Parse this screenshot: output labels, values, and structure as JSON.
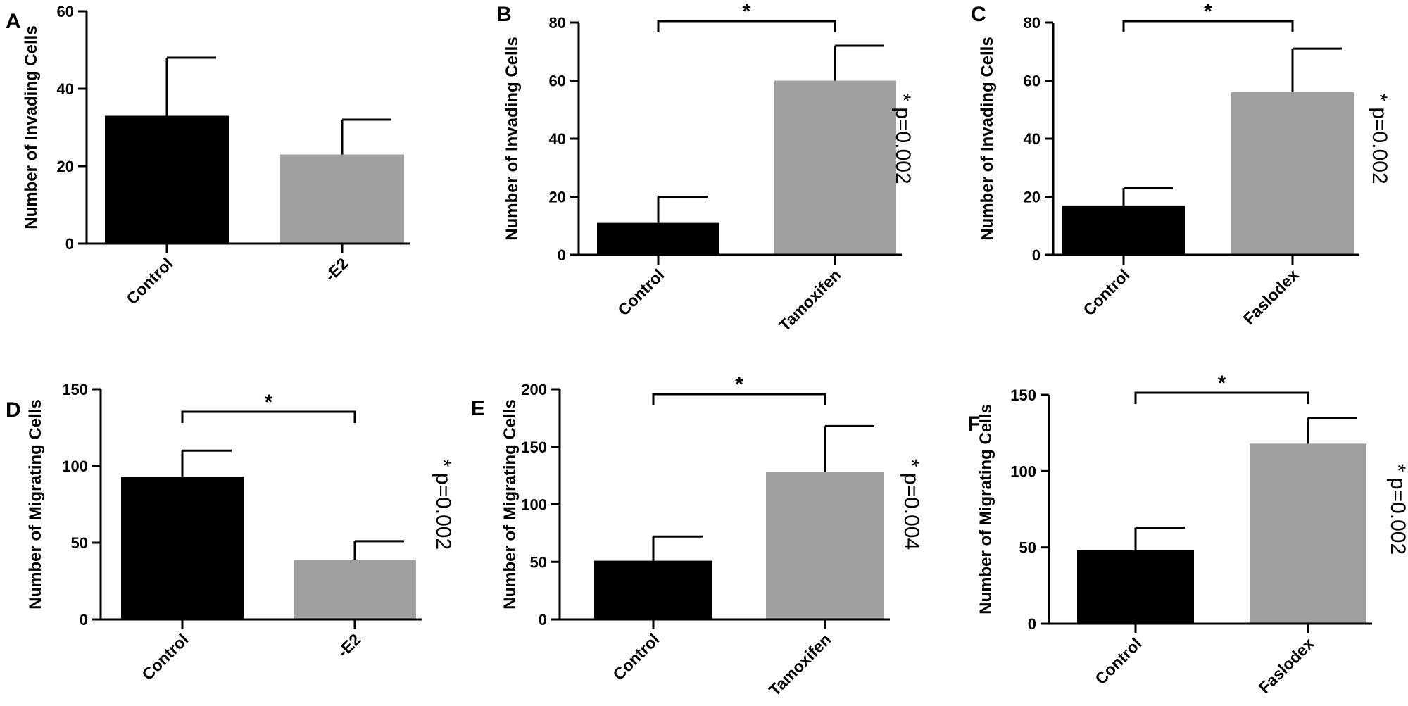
{
  "colors": {
    "control": "#000000",
    "treatment": "#a0a0a2",
    "axis": "#000000"
  },
  "chart_data": [
    {
      "panel": "A",
      "type": "bar",
      "categories": [
        "Control",
        "-E2"
      ],
      "values": [
        33,
        23
      ],
      "errors": [
        15,
        9
      ],
      "ylabel": "Number of Invading Cells",
      "ylim": [
        0,
        60
      ],
      "yticks": [
        0,
        20,
        40,
        60
      ],
      "bracket": null,
      "pvalue": null
    },
    {
      "panel": "B",
      "type": "bar",
      "categories": [
        "Control",
        "Tamoxifen"
      ],
      "values": [
        11,
        60
      ],
      "errors": [
        9,
        12
      ],
      "ylabel": "Number of Invading Cells",
      "ylim": [
        0,
        80
      ],
      "yticks": [
        0,
        20,
        40,
        60,
        80
      ],
      "bracket": "*",
      "pvalue": "* p=0.002"
    },
    {
      "panel": "C",
      "type": "bar",
      "categories": [
        "Control",
        "Faslodex"
      ],
      "values": [
        17,
        56
      ],
      "errors": [
        6,
        15
      ],
      "ylabel": "Number of Invading Cells",
      "ylim": [
        0,
        80
      ],
      "yticks": [
        0,
        20,
        40,
        60,
        80
      ],
      "bracket": "*",
      "pvalue": "* p=0.002"
    },
    {
      "panel": "D",
      "type": "bar",
      "categories": [
        "Control",
        "-E2"
      ],
      "values": [
        93,
        39
      ],
      "errors": [
        17,
        12
      ],
      "ylabel": "Number of Migrating Cells",
      "ylim": [
        0,
        150
      ],
      "yticks": [
        0,
        50,
        100,
        150
      ],
      "bracket": "*",
      "pvalue": "* p=0.002"
    },
    {
      "panel": "E",
      "type": "bar",
      "categories": [
        "Control",
        "Tamoxifen"
      ],
      "values": [
        51,
        128
      ],
      "errors": [
        21,
        40
      ],
      "ylabel": "Number of Migrating Cells",
      "ylim": [
        0,
        200
      ],
      "yticks": [
        0,
        50,
        100,
        150,
        200
      ],
      "bracket": "*",
      "pvalue": "* p=0.004"
    },
    {
      "panel": "F",
      "type": "bar",
      "categories": [
        "Control",
        "Faslodex"
      ],
      "values": [
        48,
        118
      ],
      "errors": [
        15,
        17
      ],
      "ylabel": "Number of Migrating Cells",
      "ylim": [
        0,
        150
      ],
      "yticks": [
        0,
        50,
        100,
        150
      ],
      "bracket": "*",
      "pvalue": "* p=0.002"
    }
  ]
}
